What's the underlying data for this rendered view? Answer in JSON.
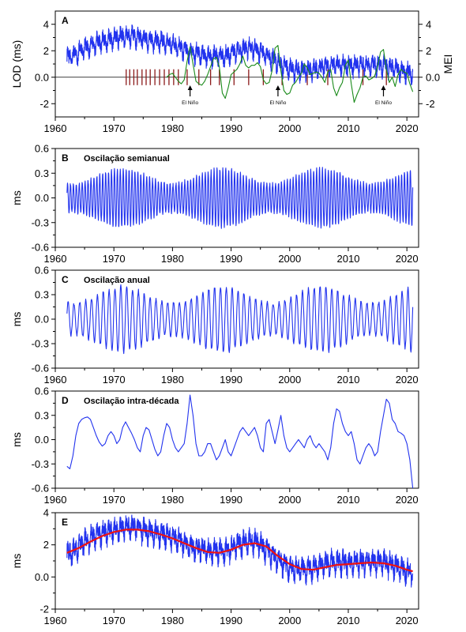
{
  "chart_data": [
    {
      "id": "A",
      "type": "line",
      "panel_label": "A",
      "title": "",
      "ylabel": "LOD (ms)",
      "ylabel_right": "MEI",
      "xlim": [
        1960,
        2022
      ],
      "ylim": [
        -3,
        5
      ],
      "ylim_right": [
        -3,
        5
      ],
      "yticks": [
        -2,
        0,
        2,
        4
      ],
      "yticks_right": [
        -2,
        0,
        2,
        4
      ],
      "xticks": [
        1960,
        1970,
        1980,
        1990,
        2000,
        2010,
        2020
      ],
      "xlabel": "",
      "zero_line": true,
      "series": [
        {
          "name": "LOD",
          "color": "#2233ee",
          "seasonal": true,
          "x": [
            1962,
            1963,
            1964,
            1965,
            1966,
            1967,
            1968,
            1969,
            1970,
            1971,
            1972,
            1973,
            1974,
            1975,
            1976,
            1977,
            1978,
            1979,
            1980,
            1981,
            1982,
            1983,
            1984,
            1985,
            1986,
            1987,
            1988,
            1989,
            1990,
            1991,
            1992,
            1993,
            1994,
            1995,
            1996,
            1997,
            1998,
            1999,
            2000,
            2001,
            2002,
            2003,
            2004,
            2005,
            2006,
            2007,
            2008,
            2009,
            2010,
            2011,
            2012,
            2013,
            2014,
            2015,
            2016,
            2017,
            2018,
            2019,
            2020,
            2021
          ],
          "y": [
            1.4,
            1.6,
            1.9,
            2.2,
            2.4,
            2.6,
            2.7,
            2.8,
            2.9,
            3.0,
            3.1,
            3.1,
            3.0,
            2.9,
            2.8,
            2.7,
            2.7,
            2.6,
            2.5,
            2.3,
            2.1,
            1.9,
            1.8,
            1.7,
            1.6,
            1.6,
            1.6,
            1.6,
            1.8,
            2.0,
            2.1,
            2.2,
            2.2,
            2.0,
            1.7,
            1.4,
            1.1,
            0.8,
            0.6,
            0.5,
            0.5,
            0.5,
            0.6,
            0.7,
            0.8,
            0.9,
            0.9,
            0.9,
            0.9,
            0.9,
            0.9,
            0.9,
            0.9,
            0.9,
            0.9,
            0.8,
            0.7,
            0.5,
            0.4,
            0.3
          ]
        },
        {
          "name": "MEI",
          "color": "#1a8a1a",
          "x": [
            1979.0,
            1979.5,
            1980.0,
            1980.5,
            1981.0,
            1981.5,
            1982.0,
            1982.5,
            1983.0,
            1983.5,
            1984.0,
            1984.5,
            1985.0,
            1985.5,
            1986.0,
            1986.5,
            1987.0,
            1987.5,
            1988.0,
            1988.5,
            1989.0,
            1989.5,
            1990.0,
            1990.5,
            1991.0,
            1991.5,
            1992.0,
            1992.5,
            1993.0,
            1993.5,
            1994.0,
            1994.5,
            1995.0,
            1995.5,
            1996.0,
            1996.5,
            1997.0,
            1997.5,
            1998.0,
            1998.5,
            1999.0,
            1999.5,
            2000.0,
            2000.5,
            2001.0,
            2001.5,
            2002.0,
            2002.5,
            2003.0,
            2003.5,
            2004.0,
            2004.5,
            2005.0,
            2005.5,
            2006.0,
            2006.5,
            2007.0,
            2007.5,
            2008.0,
            2008.5,
            2009.0,
            2009.5,
            2010.0,
            2010.5,
            2011.0,
            2011.5,
            2012.0,
            2012.5,
            2013.0,
            2013.5,
            2014.0,
            2014.5,
            2015.0,
            2015.5,
            2016.0,
            2016.5,
            2017.0,
            2017.5,
            2018.0,
            2018.5,
            2019.0,
            2019.5,
            2020.0,
            2020.5,
            2021.0
          ],
          "y": [
            0.0,
            0.2,
            0.3,
            0.0,
            -0.3,
            -0.5,
            -0.2,
            1.2,
            2.3,
            1.0,
            -0.3,
            -0.5,
            -0.6,
            -0.3,
            0.2,
            0.8,
            1.4,
            1.5,
            0.8,
            -1.2,
            -1.6,
            -0.8,
            0.2,
            0.4,
            0.6,
            1.0,
            1.6,
            0.9,
            0.7,
            0.9,
            0.9,
            1.1,
            0.8,
            -0.2,
            -0.5,
            -0.4,
            0.5,
            2.2,
            2.4,
            0.5,
            -1.0,
            -1.3,
            -1.2,
            -0.6,
            -0.4,
            0.0,
            0.3,
            1.0,
            0.7,
            0.2,
            0.3,
            0.4,
            0.3,
            0.0,
            -0.4,
            0.4,
            0.6,
            -0.8,
            -1.4,
            -0.8,
            -0.4,
            0.9,
            1.3,
            -0.5,
            -1.9,
            -1.3,
            -0.8,
            0.0,
            0.1,
            -0.2,
            -0.1,
            0.1,
            0.8,
            1.9,
            2.1,
            0.6,
            -0.4,
            0.0,
            -0.7,
            0.2,
            0.6,
            0.4,
            0.3,
            -0.5,
            -1.1
          ]
        }
      ],
      "event_ticks_color": "#8b1a1a",
      "event_ticks_x": [
        1972.1,
        1972.7,
        1973.4,
        1974.0,
        1974.8,
        1975.5,
        1976.2,
        1977.0,
        1977.8,
        1978.6,
        1979.4,
        1980.2,
        1981.0,
        1982.5,
        1984.5,
        1986.5,
        1988.0,
        1990.5,
        1993.0,
        1995.5,
        1998.7,
        2003.0,
        2006.5,
        2012.5,
        2016.5
      ],
      "annotations": [
        {
          "text": "El Niño",
          "x": 1983,
          "arrow_tip_y": 2.0,
          "arrow_tail_y": 0.9
        },
        {
          "text": "El Niño",
          "x": 1998,
          "arrow_tip_y": 2.0,
          "arrow_tail_y": 0.9
        },
        {
          "text": "El Niño",
          "x": 2016,
          "arrow_tip_y": 2.0,
          "arrow_tail_y": 0.9
        }
      ]
    },
    {
      "id": "B",
      "type": "line",
      "panel_label": "B",
      "title": "Oscilação semianual",
      "ylabel": "ms",
      "xlim": [
        1960,
        2022
      ],
      "ylim": [
        -0.6,
        0.6
      ],
      "yticks": [
        -0.6,
        -0.3,
        0.0,
        0.3,
        0.6
      ],
      "xticks": [
        1960,
        1970,
        1980,
        1990,
        2000,
        2010,
        2020
      ],
      "xlabel": "",
      "oscillation": {
        "start": 1962,
        "end": 2021,
        "period_years": 0.5,
        "amplitude": 0.3
      },
      "series": [
        {
          "color": "#2233ee"
        }
      ]
    },
    {
      "id": "C",
      "type": "line",
      "panel_label": "C",
      "title": "Oscilação anual",
      "ylabel": "ms",
      "xlim": [
        1960,
        2022
      ],
      "ylim": [
        -0.6,
        0.6
      ],
      "yticks": [
        -0.6,
        -0.3,
        0.0,
        0.3,
        0.6
      ],
      "xticks": [
        1960,
        1970,
        1980,
        1990,
        2000,
        2010,
        2020
      ],
      "xlabel": "",
      "oscillation": {
        "start": 1962,
        "end": 2021,
        "period_years": 1.0,
        "amplitude": 0.34
      },
      "series": [
        {
          "color": "#2233ee"
        }
      ]
    },
    {
      "id": "D",
      "type": "line",
      "panel_label": "D",
      "title": "Oscilação intra-década",
      "ylabel": "ms",
      "xlim": [
        1960,
        2022
      ],
      "ylim": [
        -0.6,
        0.6
      ],
      "yticks": [
        -0.6,
        -0.3,
        0.0,
        0.3,
        0.6
      ],
      "xticks": [
        1960,
        1970,
        1980,
        1990,
        2000,
        2010,
        2020
      ],
      "xlabel": "",
      "series": [
        {
          "color": "#2233ee",
          "x": [
            1962.0,
            1962.5,
            1963.0,
            1963.5,
            1964.0,
            1964.5,
            1965.0,
            1965.5,
            1966.0,
            1966.5,
            1967.0,
            1967.5,
            1968.0,
            1968.5,
            1969.0,
            1969.5,
            1970.0,
            1970.5,
            1971.0,
            1971.5,
            1972.0,
            1972.5,
            1973.0,
            1973.5,
            1974.0,
            1974.5,
            1975.0,
            1975.5,
            1976.0,
            1976.5,
            1977.0,
            1977.5,
            1978.0,
            1978.5,
            1979.0,
            1979.5,
            1980.0,
            1980.5,
            1981.0,
            1981.5,
            1982.0,
            1982.5,
            1983.0,
            1983.5,
            1984.0,
            1984.5,
            1985.0,
            1985.5,
            1986.0,
            1986.5,
            1987.0,
            1987.5,
            1988.0,
            1988.5,
            1989.0,
            1989.5,
            1990.0,
            1990.5,
            1991.0,
            1991.5,
            1992.0,
            1992.5,
            1993.0,
            1993.5,
            1994.0,
            1994.5,
            1995.0,
            1995.5,
            1996.0,
            1996.5,
            1997.0,
            1997.5,
            1998.0,
            1998.5,
            1999.0,
            1999.5,
            2000.0,
            2000.5,
            2001.0,
            2001.5,
            2002.0,
            2002.5,
            2003.0,
            2003.5,
            2004.0,
            2004.5,
            2005.0,
            2005.5,
            2006.0,
            2006.5,
            2007.0,
            2007.5,
            2008.0,
            2008.5,
            2009.0,
            2009.5,
            2010.0,
            2010.5,
            2011.0,
            2011.5,
            2012.0,
            2012.5,
            2013.0,
            2013.5,
            2014.0,
            2014.5,
            2015.0,
            2015.5,
            2016.0,
            2016.5,
            2017.0,
            2017.5,
            2018.0,
            2018.5,
            2019.0,
            2019.5,
            2020.0,
            2020.5,
            2021.0
          ],
          "y": [
            -0.33,
            -0.36,
            -0.2,
            0.05,
            0.2,
            0.25,
            0.27,
            0.28,
            0.25,
            0.15,
            0.05,
            -0.03,
            -0.08,
            -0.05,
            0.05,
            0.1,
            0.05,
            -0.05,
            0.0,
            0.15,
            0.22,
            0.15,
            0.08,
            0.0,
            -0.1,
            -0.15,
            0.05,
            0.15,
            0.12,
            0.0,
            -0.12,
            -0.2,
            -0.15,
            0.05,
            0.2,
            0.15,
            0.0,
            -0.1,
            -0.15,
            -0.1,
            -0.05,
            0.2,
            0.55,
            0.3,
            -0.05,
            -0.2,
            -0.2,
            -0.15,
            -0.05,
            -0.05,
            -0.15,
            -0.25,
            -0.2,
            -0.1,
            0.0,
            -0.15,
            -0.2,
            -0.1,
            0.0,
            0.1,
            0.15,
            0.1,
            0.05,
            0.1,
            0.15,
            0.05,
            -0.1,
            -0.15,
            0.2,
            0.25,
            0.1,
            -0.05,
            0.12,
            0.3,
            0.05,
            -0.1,
            -0.15,
            -0.1,
            -0.05,
            0.0,
            -0.05,
            -0.1,
            0.0,
            0.05,
            -0.05,
            -0.1,
            -0.05,
            -0.1,
            -0.15,
            -0.25,
            -0.1,
            0.2,
            0.38,
            0.35,
            0.2,
            0.1,
            0.05,
            0.1,
            -0.05,
            -0.25,
            -0.3,
            -0.2,
            -0.1,
            -0.05,
            -0.1,
            -0.2,
            -0.15,
            0.1,
            0.3,
            0.5,
            0.45,
            0.25,
            0.2,
            0.1,
            0.08,
            0.05,
            -0.05,
            -0.25,
            -0.6
          ]
        }
      ]
    },
    {
      "id": "E",
      "type": "line",
      "panel_label": "E",
      "title": "",
      "ylabel": "ms",
      "xlim": [
        1960,
        2022
      ],
      "ylim": [
        -2,
        4
      ],
      "yticks": [
        -2,
        0,
        2,
        4
      ],
      "xticks": [
        1960,
        1970,
        1980,
        1990,
        2000,
        2010,
        2020
      ],
      "xlabel": "",
      "series": [
        {
          "name": "LOD",
          "color": "#2233ee",
          "seasonal": true,
          "x": [
            1962,
            1963,
            1964,
            1965,
            1966,
            1967,
            1968,
            1969,
            1970,
            1971,
            1972,
            1973,
            1974,
            1975,
            1976,
            1977,
            1978,
            1979,
            1980,
            1981,
            1982,
            1983,
            1984,
            1985,
            1986,
            1987,
            1988,
            1989,
            1990,
            1991,
            1992,
            1993,
            1994,
            1995,
            1996,
            1997,
            1998,
            1999,
            2000,
            2001,
            2002,
            2003,
            2004,
            2005,
            2006,
            2007,
            2008,
            2009,
            2010,
            2011,
            2012,
            2013,
            2014,
            2015,
            2016,
            2017,
            2018,
            2019,
            2020,
            2021
          ],
          "y": [
            1.4,
            1.6,
            1.9,
            2.2,
            2.4,
            2.6,
            2.7,
            2.8,
            2.9,
            3.0,
            3.1,
            3.1,
            3.0,
            2.9,
            2.8,
            2.7,
            2.7,
            2.6,
            2.5,
            2.3,
            2.1,
            1.9,
            1.8,
            1.7,
            1.6,
            1.6,
            1.6,
            1.6,
            1.8,
            2.0,
            2.1,
            2.2,
            2.2,
            2.0,
            1.7,
            1.4,
            1.1,
            0.8,
            0.6,
            0.5,
            0.5,
            0.5,
            0.6,
            0.7,
            0.8,
            0.9,
            0.9,
            0.9,
            0.9,
            0.9,
            0.9,
            0.9,
            0.9,
            0.9,
            0.9,
            0.8,
            0.7,
            0.5,
            0.4,
            0.3
          ]
        },
        {
          "name": "trend",
          "color": "#ee1111",
          "x": [
            1962,
            1964,
            1966,
            1968,
            1970,
            1972,
            1974,
            1976,
            1978,
            1980,
            1982,
            1984,
            1986,
            1988,
            1990,
            1992,
            1994,
            1996,
            1998,
            2000,
            2002,
            2004,
            2006,
            2008,
            2010,
            2012,
            2014,
            2016,
            2018,
            2020,
            2021
          ],
          "y": [
            1.5,
            1.8,
            2.2,
            2.55,
            2.8,
            2.95,
            2.95,
            2.85,
            2.65,
            2.4,
            2.1,
            1.8,
            1.55,
            1.5,
            1.7,
            2.0,
            2.1,
            1.9,
            1.3,
            0.8,
            0.5,
            0.45,
            0.6,
            0.75,
            0.8,
            0.85,
            0.9,
            0.85,
            0.7,
            0.45,
            0.35
          ]
        }
      ]
    }
  ]
}
